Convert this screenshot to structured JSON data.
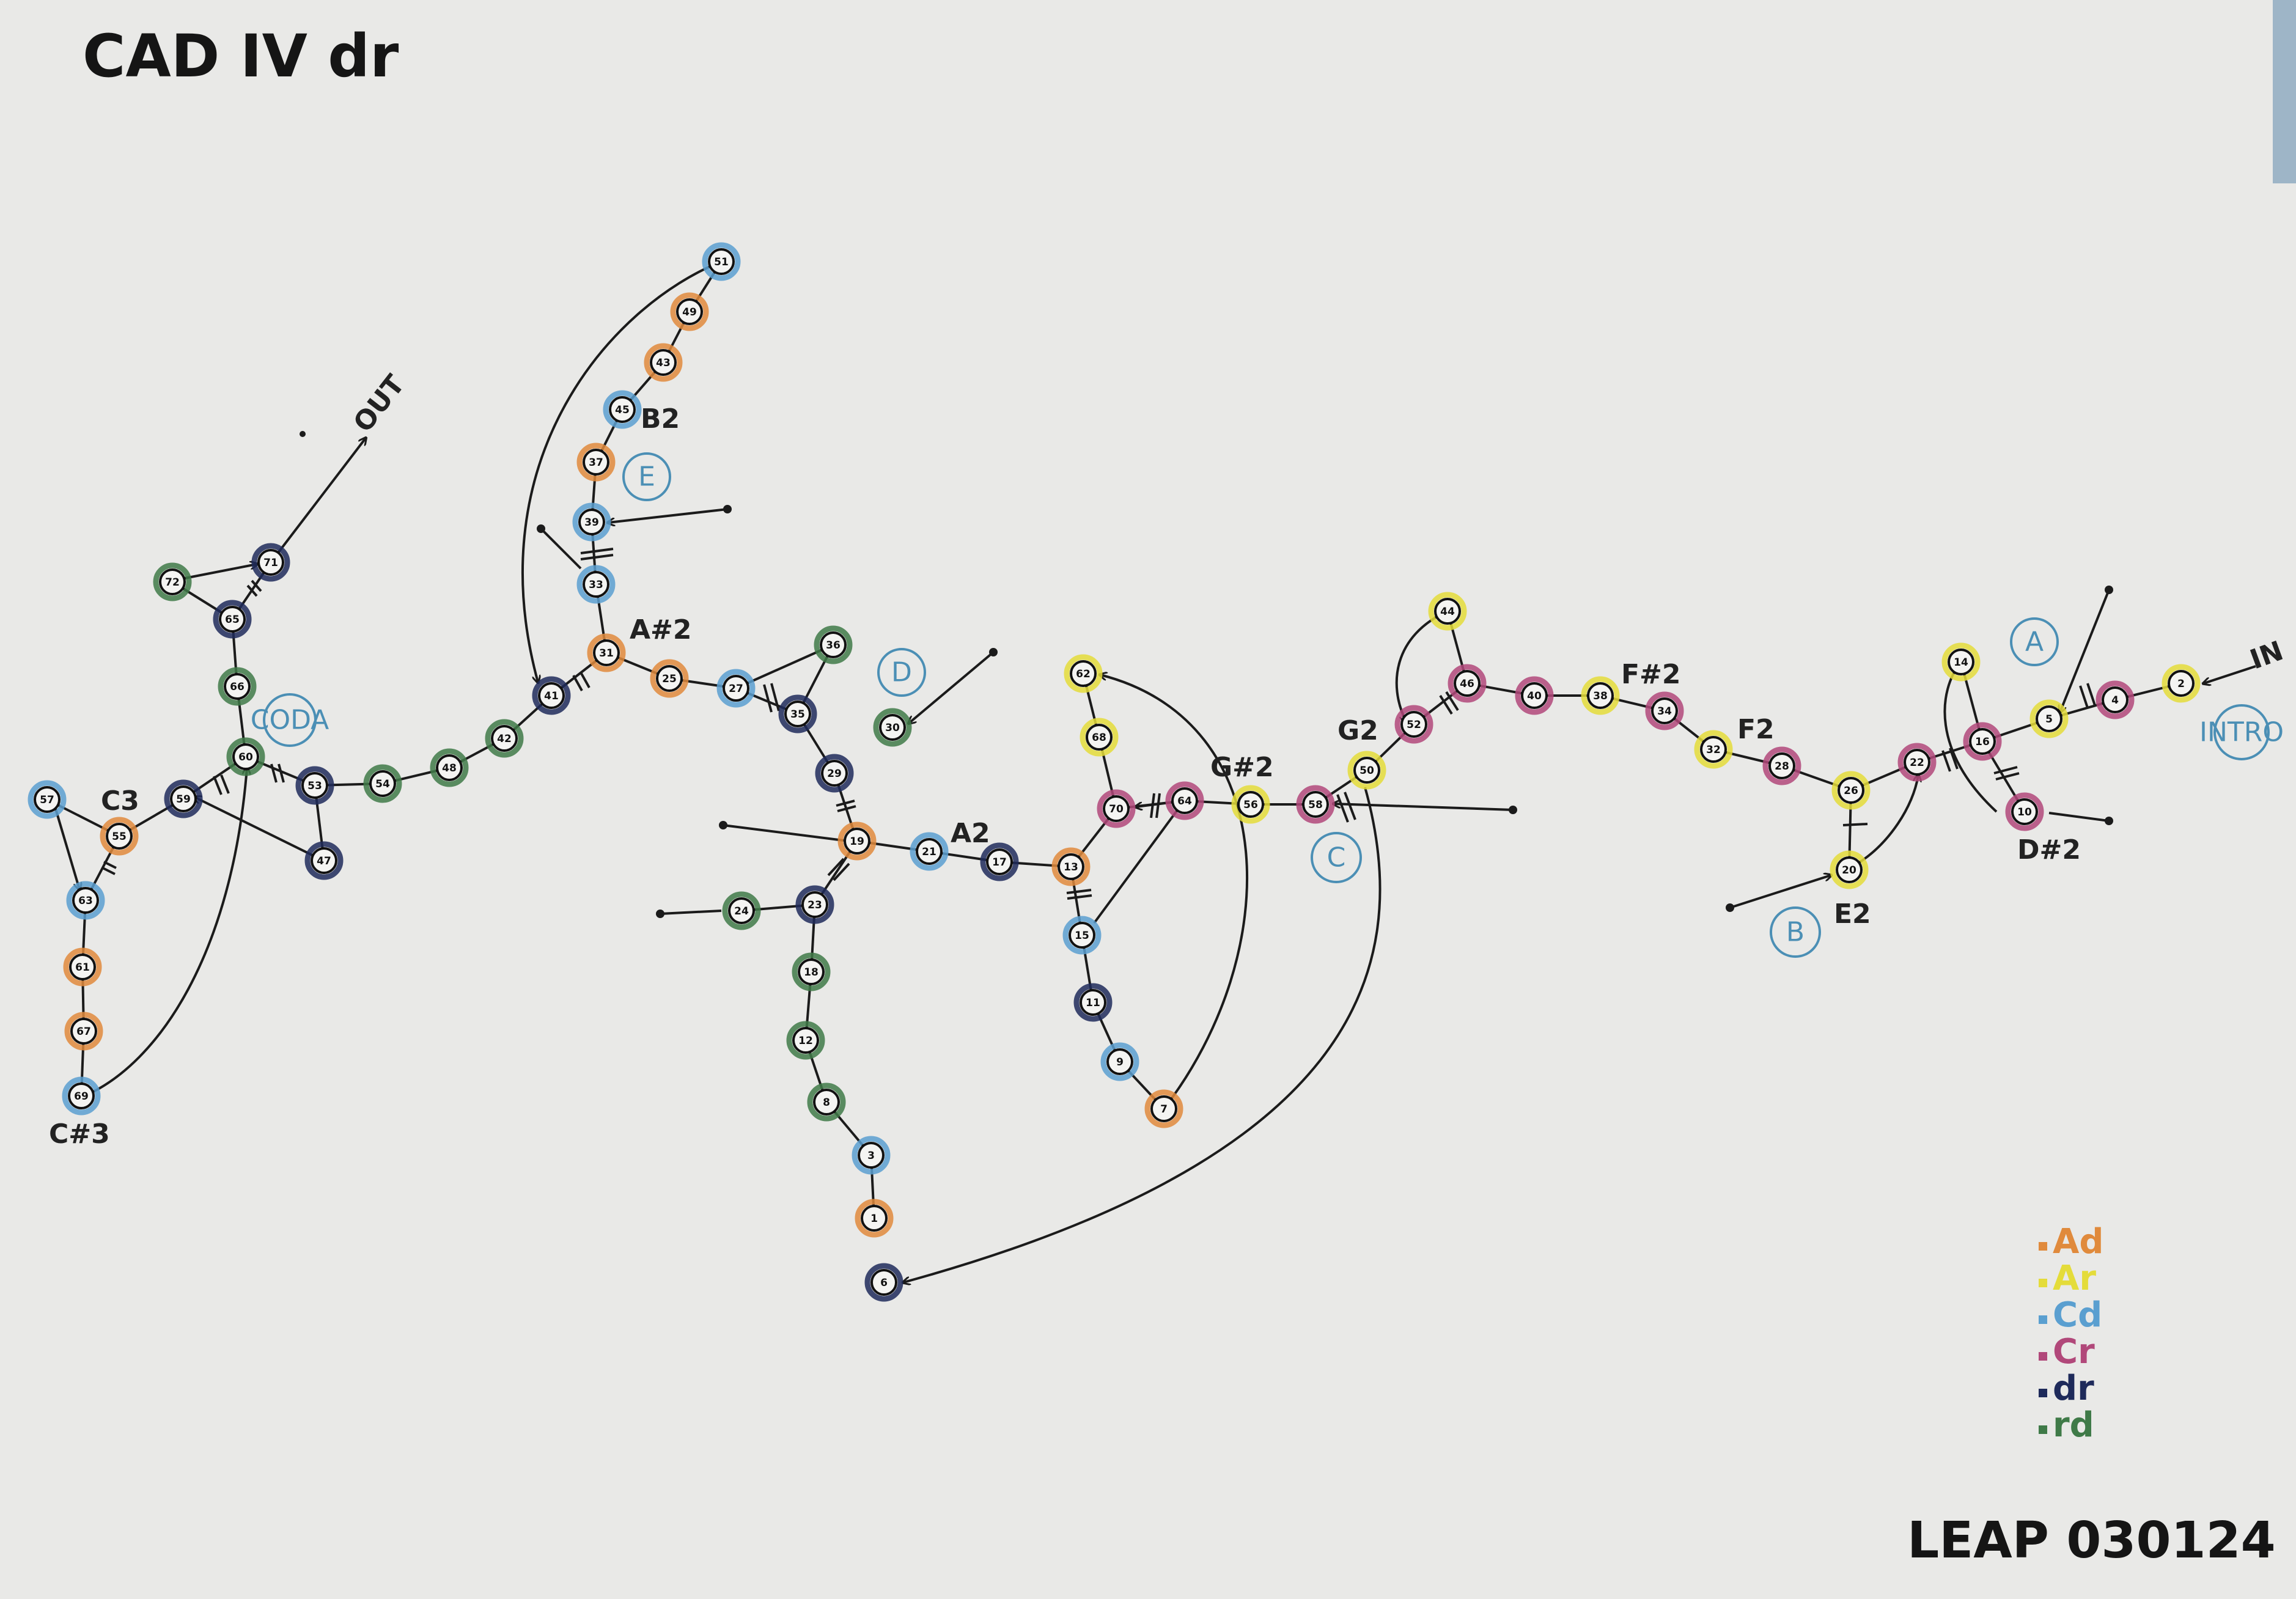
{
  "title": "CAD IV dr",
  "footer": "LEAP 030124",
  "colors": {
    "paper": "#e9e9e7",
    "ink": "#1b1b1b",
    "orange": "#e08a3c",
    "yellow": "#e4dc3a",
    "blue": "#5a9fd0",
    "magenta": "#b1487a",
    "navy": "#1e2a5a",
    "green": "#3f7a48",
    "section_blue": "#4b8fb5"
  },
  "legend": [
    {
      "text": "Ad",
      "color": "#e08a3c"
    },
    {
      "text": "Ar",
      "color": "#e4dc3a"
    },
    {
      "text": "Cd",
      "color": "#5a9fd0"
    },
    {
      "text": "Cr",
      "color": "#b1487a"
    },
    {
      "text": "dr",
      "color": "#1e2a5a"
    },
    {
      "text": "rd",
      "color": "#3f7a48"
    }
  ],
  "sections": [
    "A",
    "B",
    "C",
    "D",
    "E",
    "CODA",
    "INTRO"
  ],
  "labels": {
    "in": "IN",
    "out": "OUT",
    "c3": "C3",
    "cs3": "C#3",
    "b2": "B2",
    "as2": "A#2",
    "a2": "A2",
    "gs2": "G#2",
    "g2": "G2",
    "fs2": "F#2",
    "f2": "F2",
    "e2": "E2",
    "ds2": "D#2"
  },
  "nodes": [
    "1",
    "2",
    "3",
    "4",
    "5",
    "6",
    "7",
    "8",
    "9",
    "10",
    "11",
    "12",
    "13",
    "14",
    "15",
    "16",
    "17",
    "18",
    "19",
    "20",
    "21",
    "22",
    "23",
    "24",
    "25",
    "26",
    "27",
    "28",
    "29",
    "30",
    "31",
    "32",
    "33",
    "34",
    "35",
    "36",
    "37",
    "38",
    "39",
    "40",
    "41",
    "42",
    "43",
    "44",
    "45",
    "46",
    "47",
    "48",
    "49",
    "50",
    "51",
    "52",
    "53",
    "54",
    "55",
    "56",
    "57",
    "58",
    "59",
    "60",
    "61",
    "62",
    "63",
    "64",
    "65",
    "66",
    "67",
    "68",
    "69",
    "70",
    "71",
    "72"
  ]
}
